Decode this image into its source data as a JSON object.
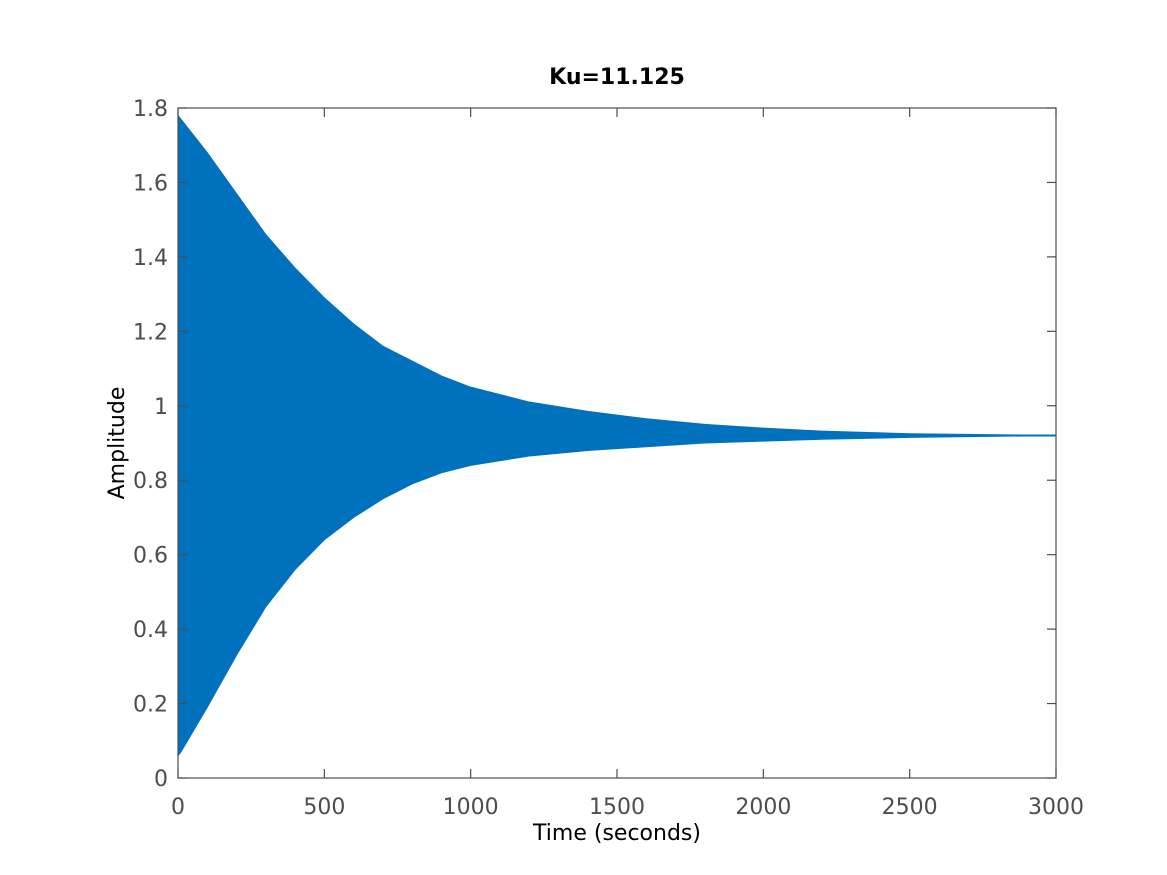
{
  "chart_data": {
    "type": "area",
    "title": "Ku=11.125",
    "xlabel": "Time (seconds)",
    "ylabel": "Amplitude",
    "xlim": [
      0,
      3000
    ],
    "ylim": [
      0,
      1.8
    ],
    "x_ticks": [
      0,
      500,
      1000,
      1500,
      2000,
      2500,
      3000
    ],
    "x_tick_labels": [
      "0",
      "500",
      "1000",
      "1500",
      "2000",
      "2500",
      "3000"
    ],
    "y_ticks": [
      0,
      0.2,
      0.4,
      0.6,
      0.8,
      1.0,
      1.2,
      1.4,
      1.6,
      1.8
    ],
    "y_tick_labels": [
      "0",
      "0.2",
      "0.4",
      "0.6",
      "0.8",
      "1",
      "1.2",
      "1.4",
      "1.6",
      "1.8"
    ],
    "grid": false,
    "series": [
      {
        "color": "#0072BD",
        "steady_state": 0.92,
        "upper_envelope": {
          "x": [
            0,
            10,
            100,
            200,
            300,
            400,
            500,
            600,
            700,
            800,
            900,
            1000,
            1200,
            1400,
            1600,
            1800,
            2000,
            2200,
            2500,
            2800,
            3000
          ],
          "y": [
            1.78,
            1.77,
            1.68,
            1.57,
            1.46,
            1.37,
            1.29,
            1.22,
            1.16,
            1.12,
            1.08,
            1.05,
            1.01,
            0.985,
            0.965,
            0.95,
            0.94,
            0.932,
            0.925,
            0.922,
            0.92
          ]
        },
        "lower_envelope": {
          "x": [
            0,
            10,
            100,
            200,
            300,
            400,
            500,
            600,
            700,
            800,
            900,
            1000,
            1200,
            1400,
            1600,
            1800,
            2000,
            2200,
            2500,
            2800,
            3000
          ],
          "y": [
            0.06,
            0.07,
            0.19,
            0.33,
            0.46,
            0.56,
            0.64,
            0.7,
            0.75,
            0.79,
            0.82,
            0.84,
            0.865,
            0.88,
            0.89,
            0.9,
            0.905,
            0.91,
            0.915,
            0.918,
            0.92
          ]
        }
      }
    ]
  }
}
